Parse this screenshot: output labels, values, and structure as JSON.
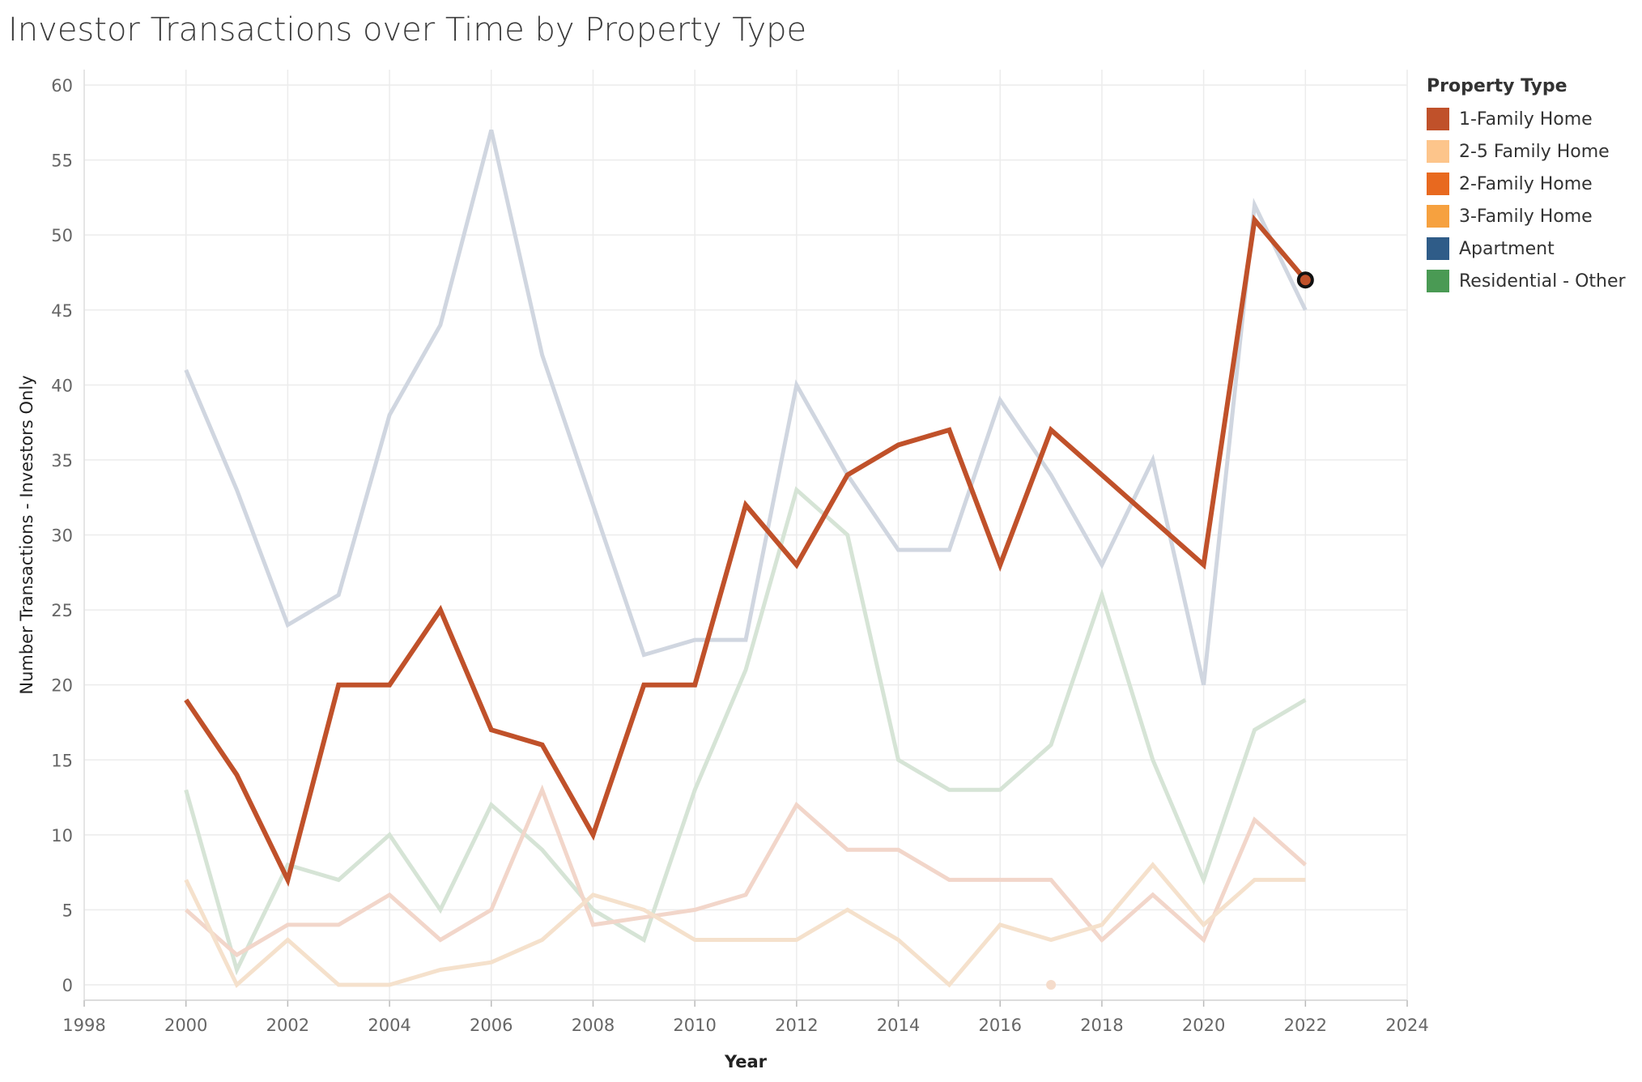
{
  "chart_data": {
    "type": "line",
    "title": "Investor Transactions over Time by Property Type",
    "xlabel": "Year",
    "ylabel": "Number Transactions - Investors Only",
    "xlim": [
      1998,
      2024
    ],
    "ylim": [
      0,
      60
    ],
    "x_ticks": [
      1998,
      2000,
      2002,
      2004,
      2006,
      2008,
      2010,
      2012,
      2014,
      2016,
      2018,
      2020,
      2022,
      2024
    ],
    "y_ticks": [
      0,
      5,
      10,
      15,
      20,
      25,
      30,
      35,
      40,
      45,
      50,
      55,
      60
    ],
    "grid": true,
    "legend_title": "Property Type",
    "legend_position": "right",
    "legend": [
      {
        "name": "1-Family Home",
        "color": "#c0512a"
      },
      {
        "name": "2-5 Family Home",
        "color": "#fdc58b"
      },
      {
        "name": "2-Family Home",
        "color": "#e8691f"
      },
      {
        "name": "3-Family Home",
        "color": "#f6a13f"
      },
      {
        "name": "Apartment",
        "color": "#2f5c88"
      },
      {
        "name": "Residential - Other",
        "color": "#4a9a54"
      }
    ],
    "series": [
      {
        "color": "#d0d6e0",
        "highlighted": false,
        "x": [
          2000,
          2001,
          2002,
          2003,
          2004,
          2005,
          2006,
          2007,
          2008,
          2009,
          2010,
          2011,
          2012,
          2013,
          2014,
          2015,
          2016,
          2017,
          2018,
          2019,
          2020,
          2021,
          2022
        ],
        "y": [
          41,
          33,
          24,
          26,
          38,
          44,
          57,
          42,
          32,
          22,
          23,
          23,
          40,
          34,
          29,
          29,
          39,
          34,
          28,
          35,
          20,
          52,
          45
        ]
      },
      {
        "color": "#d6e4d6",
        "highlighted": false,
        "x": [
          2000,
          2001,
          2002,
          2003,
          2004,
          2005,
          2006,
          2007,
          2008,
          2009,
          2010,
          2011,
          2012,
          2013,
          2014,
          2015,
          2016,
          2017,
          2018,
          2019,
          2020,
          2021,
          2022
        ],
        "y": [
          13,
          1,
          8,
          7,
          10,
          5,
          12,
          9,
          5,
          3,
          13,
          21,
          33,
          30,
          15,
          13,
          13,
          16,
          26,
          15,
          7,
          17,
          19
        ]
      },
      {
        "color": "#f2d6ca",
        "highlighted": false,
        "x": [
          2000,
          2001,
          2002,
          2003,
          2004,
          2005,
          2006,
          2007,
          2008,
          2009,
          2010,
          2011,
          2012,
          2013,
          2014,
          2015,
          2016,
          2017,
          2018,
          2019,
          2020,
          2021,
          2022
        ],
        "y": [
          5,
          2,
          4,
          4,
          6,
          3,
          5,
          13,
          4,
          4.5,
          5,
          6,
          12,
          9,
          9,
          7,
          7,
          7,
          3,
          6,
          3,
          11,
          8
        ]
      },
      {
        "color": "#f5e1cc",
        "highlighted": false,
        "x": [
          2000,
          2001,
          2002,
          2003,
          2004,
          2005,
          2006,
          2007,
          2008,
          2009,
          2010,
          2011,
          2012,
          2013,
          2014,
          2015,
          2016,
          2017,
          2018,
          2019,
          2020,
          2021,
          2022
        ],
        "y": [
          7,
          0,
          3,
          0,
          0,
          1,
          1.5,
          3,
          6,
          5,
          3,
          3,
          3,
          5,
          3,
          0,
          4,
          3,
          4,
          8,
          4,
          7,
          7
        ]
      },
      {
        "color": "#f5dccb",
        "highlighted": false,
        "marker_only": true,
        "x": [
          2017
        ],
        "y": [
          0
        ]
      },
      {
        "name": "1-Family Home",
        "color": "#c0512a",
        "highlighted": true,
        "x": [
          2000,
          2001,
          2002,
          2003,
          2004,
          2005,
          2006,
          2007,
          2008,
          2009,
          2010,
          2011,
          2012,
          2013,
          2014,
          2015,
          2016,
          2017,
          2018,
          2019,
          2020,
          2021,
          2022
        ],
        "y": [
          19,
          14,
          7,
          20,
          20,
          25,
          17,
          16,
          10,
          20,
          20,
          32,
          28,
          34,
          36,
          37,
          28,
          37,
          34,
          31,
          28,
          51,
          47
        ],
        "end_marker": true
      }
    ]
  }
}
